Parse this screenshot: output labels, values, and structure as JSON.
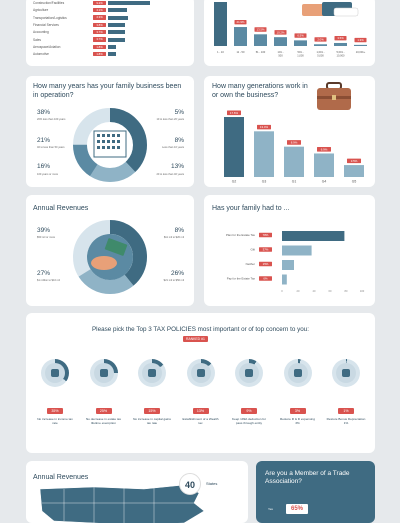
{
  "industry": {
    "rows": [
      {
        "label": "Construction/Facilities",
        "pct": "9.2%",
        "value": 9.2
      },
      {
        "label": "Agriculture",
        "pct": "4.1%",
        "value": 4.1
      },
      {
        "label": "Transportation/Logistics",
        "pct": "4.3%",
        "value": 4.3
      },
      {
        "label": "Financial Services",
        "pct": "3.8%",
        "value": 3.8
      },
      {
        "label": "Accounting",
        "pct": "3.7%",
        "value": 3.7
      },
      {
        "label": "Sales",
        "pct": "3.7%",
        "value": 3.7
      },
      {
        "label": "Aerospace/Aviation",
        "pct": "1.8%",
        "value": 1.8
      },
      {
        "label": "Automotive",
        "pct": "1.8%",
        "value": 1.8
      }
    ]
  },
  "employees": {
    "categories": [
      "1 - 10",
      "11 - 50",
      "51 - 100",
      "101 - 500",
      "501 - 1,000",
      "1,001 - 5,000",
      "5,001 - 10,000",
      "10,001+"
    ],
    "values": [
      50.8,
      21.9,
      13.5,
      10.2,
      6.5,
      2.0,
      3.5,
      1.3
    ],
    "labels": [
      "",
      "21.9%",
      "13.5%",
      "10.2%",
      "6.5%",
      "2.0%",
      "3.5%",
      "1.3%"
    ]
  },
  "years": {
    "title": "How many years has your family business been in operation?",
    "items": [
      {
        "pct": "38%",
        "caption": "20% less than 100 years"
      },
      {
        "pct": "21%",
        "caption": "40 to less than 50 years"
      },
      {
        "pct": "16%",
        "caption": "100 years or more"
      },
      {
        "pct": "5%",
        "caption": "10 to less than 20 years"
      },
      {
        "pct": "8%",
        "caption": "Less than 10 years"
      },
      {
        "pct": "13%",
        "caption": "20 to less than 40 years"
      }
    ]
  },
  "generations": {
    "title": "How many generations work in or own the business?",
    "categories": [
      "G2",
      "G3",
      "G1",
      "G4",
      "G5"
    ],
    "values": [
      17.6,
      13.4,
      8.9,
      6.9,
      3.5
    ],
    "labels": [
      "17.6%",
      "13.4%",
      "8.9%",
      "6.9%",
      "3.5%"
    ]
  },
  "revenues": {
    "title": "Annual Revenues",
    "items": [
      {
        "pct": "39%",
        "caption": "$50 mil or more"
      },
      {
        "pct": "27%",
        "caption": "$1 million to $10 mil"
      },
      {
        "pct": "8%",
        "caption": "$11 mil to $20 mil"
      },
      {
        "pct": "26%",
        "caption": "$21 mil to $50 mil"
      }
    ]
  },
  "tax_had": {
    "title": "Has your family had to ...",
    "rows": [
      {
        "label": "Plan for the Estate Tax",
        "pct": "78%",
        "value": 78
      },
      {
        "label": "Gift",
        "pct": "37%",
        "value": 37
      },
      {
        "label": "Neither",
        "pct": "15%",
        "value": 15
      },
      {
        "label": "Pay for the Estate Tax",
        "pct": "6%",
        "value": 6
      }
    ],
    "ticks": [
      "0",
      "20",
      "40",
      "60",
      "80",
      "100"
    ]
  },
  "policies": {
    "title": "Please pick the Top 3 TAX POLICIES most important or of top concern to you:",
    "ranked": "RANKED #1",
    "items": [
      {
        "pct": "35%",
        "label": "No increase in income tax rate",
        "value": 35
      },
      {
        "pct": "25%",
        "label": "No decrease in estate tax lifetime exemption",
        "value": 25
      },
      {
        "pct": "15%",
        "label": "No increase in capital gains tax rate",
        "value": 15
      },
      {
        "pct": "13%",
        "label": "Establishment of a Wealth tax",
        "value": 13
      },
      {
        "pct": "9%",
        "label": "Keep 199A deduction for pass through entity",
        "value": 9
      },
      {
        "pct": "3%",
        "label": "Restore R & D expensing 3%",
        "value": 3
      },
      {
        "pct": "1%",
        "label": "Restore Bonus Depreciation 1%",
        "value": 1
      }
    ]
  },
  "states": {
    "title": "Annual Revenues",
    "count": "40",
    "unit": "States"
  },
  "trade": {
    "title": "Are you a Member of a Trade Association?",
    "yes_label": "Yes",
    "yes_pct": "65%"
  },
  "colors": {
    "dark": "#3f6b82",
    "mid": "#8fb3c6",
    "light": "#d7e4ec",
    "accent": "#d9534f"
  },
  "chart_data": [
    {
      "type": "bar",
      "orientation": "horizontal",
      "categories": [
        "Construction/Facilities",
        "Agriculture",
        "Transportation/Logistics",
        "Financial Services",
        "Accounting",
        "Sales",
        "Aerospace/Aviation",
        "Automotive"
      ],
      "values": [
        9.2,
        4.1,
        4.3,
        3.8,
        3.7,
        3.7,
        1.8,
        1.8
      ]
    },
    {
      "type": "bar",
      "categories": [
        "1 - 10",
        "11 - 50",
        "51 - 100",
        "101 - 500",
        "501 - 1,000",
        "1,001 - 5,000",
        "5,001 - 10,000",
        "10,001+"
      ],
      "values": [
        50.8,
        21.9,
        13.5,
        10.2,
        6.5,
        2.0,
        3.5,
        1.3
      ]
    },
    {
      "type": "bar",
      "title": "How many generations work in or own the business?",
      "categories": [
        "G2",
        "G3",
        "G1",
        "G4",
        "G5"
      ],
      "values": [
        17.6,
        13.4,
        8.9,
        6.9,
        3.5
      ]
    },
    {
      "type": "bar",
      "orientation": "horizontal",
      "title": "Has your family had to ...",
      "categories": [
        "Plan for the Estate Tax",
        "Gift",
        "Neither",
        "Pay for the Estate Tax"
      ],
      "values": [
        78,
        37,
        15,
        6
      ],
      "xlim": [
        0,
        100
      ]
    },
    {
      "type": "pie",
      "title": "How many years has your family business been in operation?",
      "values": [
        38,
        21,
        16,
        5,
        8,
        13
      ]
    },
    {
      "type": "pie",
      "title": "Annual Revenues",
      "values": [
        39,
        27,
        8,
        26
      ]
    }
  ]
}
